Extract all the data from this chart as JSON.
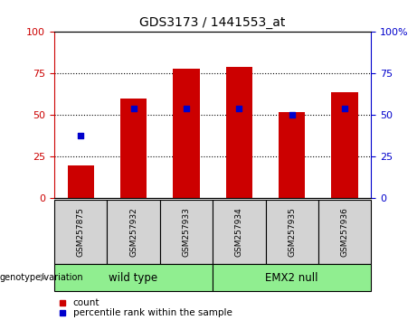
{
  "title": "GDS3173 / 1441553_at",
  "samples": [
    "GSM257875",
    "GSM257932",
    "GSM257933",
    "GSM257934",
    "GSM257935",
    "GSM257936"
  ],
  "bar_heights": [
    20,
    60,
    78,
    79,
    52,
    64
  ],
  "percentile_ranks": [
    38,
    54,
    54,
    54,
    50,
    54
  ],
  "bar_color": "#cc0000",
  "percentile_color": "#0000cc",
  "groups": [
    {
      "label": "wild type",
      "indices": [
        0,
        1,
        2
      ],
      "color": "#90ee90"
    },
    {
      "label": "EMX2 null",
      "indices": [
        3,
        4,
        5
      ],
      "color": "#90ee90"
    }
  ],
  "group_label": "genotype/variation",
  "ylim": [
    0,
    100
  ],
  "yticks": [
    0,
    25,
    50,
    75,
    100
  ],
  "legend_count_label": "count",
  "legend_percentile_label": "percentile rank within the sample",
  "background_color": "#ffffff",
  "plot_bg_color": "#ffffff",
  "sample_box_color": "#d3d3d3",
  "left_tick_color": "#cc0000",
  "right_tick_color": "#0000cc",
  "grid_yticks": [
    25,
    50,
    75
  ],
  "bar_width": 0.5,
  "figsize": [
    4.61,
    3.54
  ],
  "dpi": 100
}
